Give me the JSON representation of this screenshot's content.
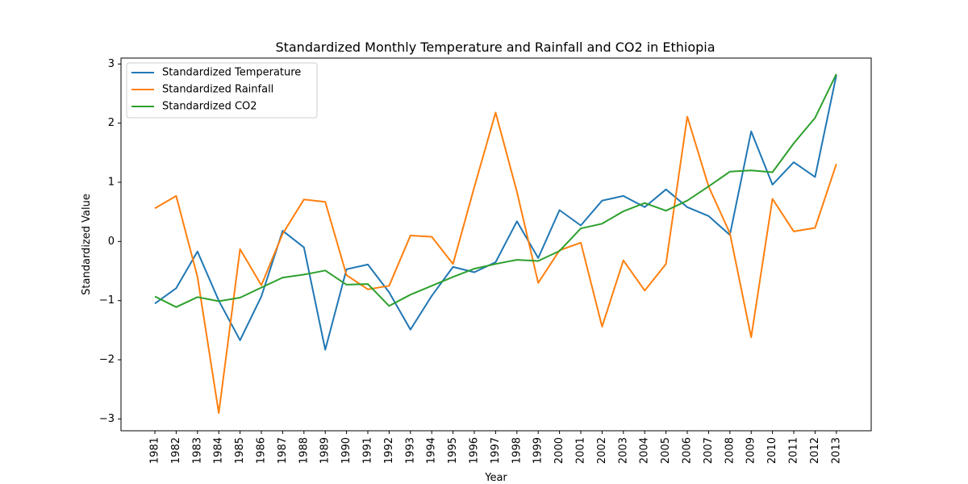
{
  "chart_data": {
    "type": "line",
    "title": "Standardized Monthly Temperature and Rainfall and CO2 in Ethiopia",
    "xlabel": "Year",
    "ylabel": "Standardized Value",
    "ylim": [
      -3.2,
      3.1
    ],
    "yticks": [
      -3,
      -2,
      -1,
      0,
      1,
      2,
      3
    ],
    "ytick_labels": [
      "−3",
      "−2",
      "−1",
      "0",
      "1",
      "2",
      "3"
    ],
    "grid": false,
    "legend_position": "top-left",
    "x": [
      "1981",
      "1982",
      "1983",
      "1984",
      "1985",
      "1986",
      "1987",
      "1988",
      "1989",
      "1990",
      "1991",
      "1992",
      "1993",
      "1994",
      "1995",
      "1996",
      "1997",
      "1998",
      "1999",
      "2000",
      "2001",
      "2002",
      "2003",
      "2004",
      "2005",
      "2006",
      "2007",
      "2008",
      "2009",
      "2010",
      "2011",
      "2012",
      "2013"
    ],
    "series": [
      {
        "name": "Standardized Temperature",
        "color": "#1f77b4",
        "values": [
          -1.05,
          -0.79,
          -0.17,
          -1.0,
          -1.67,
          -0.93,
          0.18,
          -0.1,
          -1.83,
          -0.47,
          -0.39,
          -0.86,
          -1.49,
          -0.92,
          -0.43,
          -0.52,
          -0.35,
          0.34,
          -0.28,
          0.53,
          0.27,
          0.69,
          0.77,
          0.58,
          0.88,
          0.58,
          0.43,
          0.11,
          1.86,
          0.96,
          1.34,
          1.09,
          2.81
        ]
      },
      {
        "name": "Standardized Rainfall",
        "color": "#ff7f0e",
        "values": [
          0.56,
          0.77,
          -0.6,
          -2.9,
          -0.13,
          -0.74,
          0.13,
          0.71,
          0.67,
          -0.57,
          -0.81,
          -0.75,
          0.1,
          0.08,
          -0.38,
          0.92,
          2.18,
          0.84,
          -0.7,
          -0.15,
          -0.02,
          -1.44,
          -0.32,
          -0.83,
          -0.38,
          2.11,
          0.93,
          0.14,
          -1.62,
          0.72,
          0.17,
          0.23,
          1.31
        ]
      },
      {
        "name": "Standardized CO2",
        "color": "#2ca02c",
        "values": [
          -0.93,
          -1.11,
          -0.94,
          -1.01,
          -0.95,
          -0.78,
          -0.61,
          -0.56,
          -0.49,
          -0.73,
          -0.72,
          -1.09,
          -0.9,
          -0.75,
          -0.6,
          -0.46,
          -0.38,
          -0.31,
          -0.33,
          -0.16,
          0.22,
          0.3,
          0.51,
          0.65,
          0.52,
          0.69,
          0.93,
          1.18,
          1.2,
          1.17,
          1.66,
          2.09,
          2.83
        ]
      }
    ]
  }
}
